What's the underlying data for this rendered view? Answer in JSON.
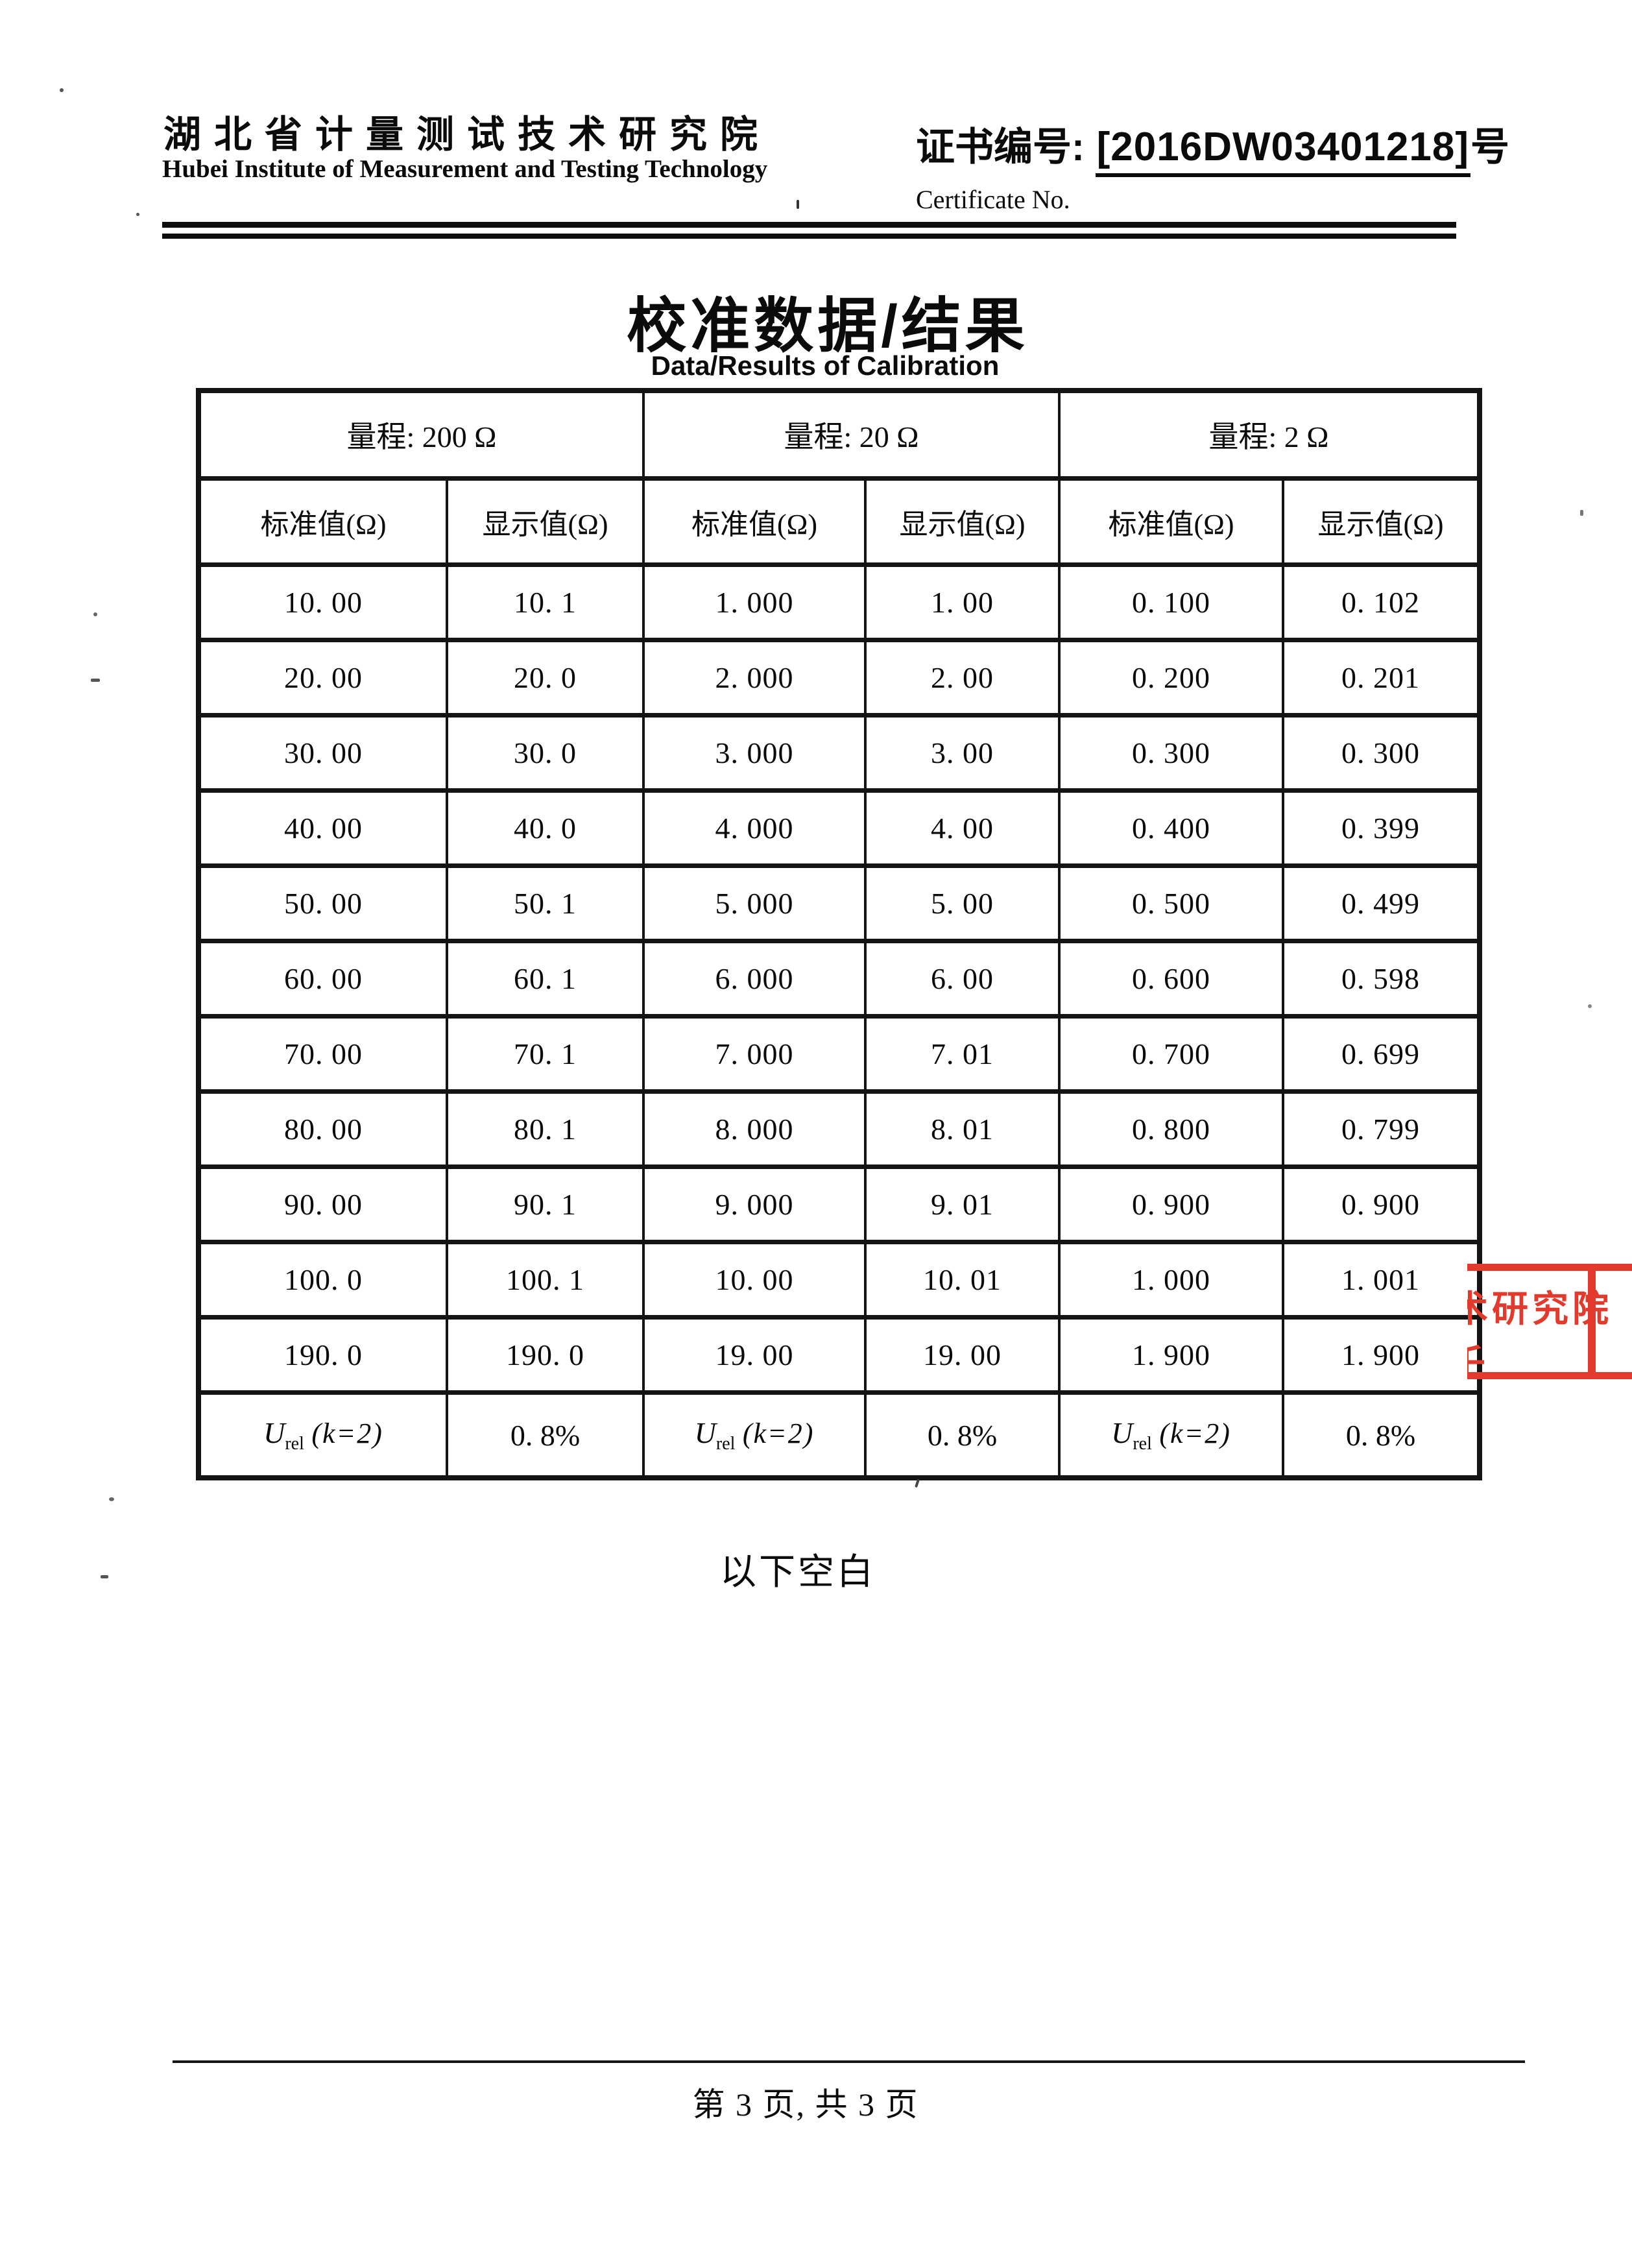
{
  "header": {
    "institute_cn": "湖北省计量测试技术研究院",
    "institute_en": "Hubei Institute of Measurement and Testing Technology",
    "certificate_label_cn": "证书编号: ",
    "certificate_number": "[2016DW03401218]",
    "certificate_suffix": "号",
    "certificate_label_en": "Certificate No."
  },
  "title": {
    "cn": "校准数据/结果",
    "en": "Data/Results of Calibration"
  },
  "table": {
    "ranges": [
      "量程: 200 Ω",
      "量程: 20 Ω",
      "量程: 2 Ω"
    ],
    "column_headers": [
      "标准值(Ω)",
      "显示值(Ω)",
      "标准值(Ω)",
      "显示值(Ω)",
      "标准值(Ω)",
      "显示值(Ω)"
    ],
    "rows": [
      [
        "10. 00",
        "10. 1",
        "1. 000",
        "1. 00",
        "0. 100",
        "0. 102"
      ],
      [
        "20. 00",
        "20. 0",
        "2. 000",
        "2. 00",
        "0. 200",
        "0. 201"
      ],
      [
        "30. 00",
        "30. 0",
        "3. 000",
        "3. 00",
        "0. 300",
        "0. 300"
      ],
      [
        "40. 00",
        "40. 0",
        "4. 000",
        "4. 00",
        "0. 400",
        "0. 399"
      ],
      [
        "50. 00",
        "50. 1",
        "5. 000",
        "5. 00",
        "0. 500",
        "0. 499"
      ],
      [
        "60. 00",
        "60. 1",
        "6. 000",
        "6. 00",
        "0. 600",
        "0. 598"
      ],
      [
        "70. 00",
        "70. 1",
        "7. 000",
        "7. 01",
        "0. 700",
        "0. 699"
      ],
      [
        "80. 00",
        "80. 1",
        "8. 000",
        "8. 01",
        "0. 800",
        "0. 799"
      ],
      [
        "90. 00",
        "90. 1",
        "9. 000",
        "9. 01",
        "0. 900",
        "0. 900"
      ],
      [
        "100. 0",
        "100. 1",
        "10. 00",
        "10. 01",
        "1. 000",
        "1. 001"
      ],
      [
        "190. 0",
        "190. 0",
        "19. 00",
        "19. 00",
        "1. 900",
        "1. 900"
      ]
    ],
    "uncertainty": {
      "symbol": "U",
      "subscript": "rel",
      "condition": "(k=2)",
      "value": "0. 8%"
    }
  },
  "blank_note": "以下空白",
  "stamp": {
    "visible_text": "研究院",
    "partial_left_char": "术",
    "partial_bottom_char": "壬",
    "color": "#e23b2e"
  },
  "footer": {
    "page_text": "第 3 页, 共 3 页"
  }
}
